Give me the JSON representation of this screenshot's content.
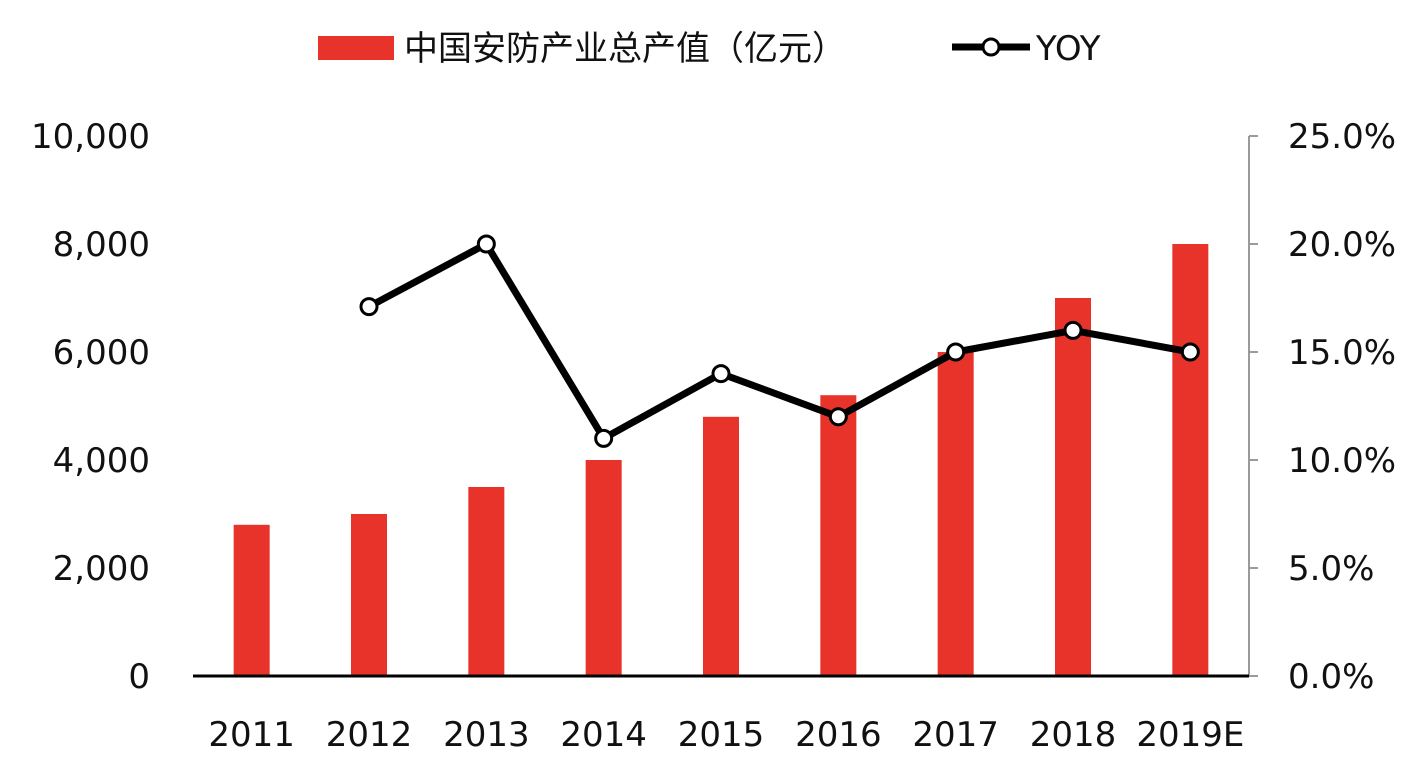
{
  "chart_data": {
    "type": "bar",
    "categories": [
      "2011",
      "2012",
      "2013",
      "2014",
      "2015",
      "2016",
      "2017",
      "2018",
      "2019E"
    ],
    "series": [
      {
        "name": "中国安防产业总产值（亿元）",
        "type": "bar",
        "axis": "left",
        "color": "#e8332a",
        "values": [
          2800,
          3000,
          3500,
          4000,
          4800,
          5200,
          6000,
          7000,
          8000
        ]
      },
      {
        "name": "YOY",
        "type": "line",
        "axis": "right",
        "color": "#000000",
        "marker": "hollow-circle",
        "values": [
          null,
          17.1,
          20.0,
          11.0,
          14.0,
          12.0,
          15.0,
          16.0,
          15.0
        ]
      }
    ],
    "left_axis": {
      "ylim": [
        0,
        10000
      ],
      "ticks": [
        0,
        2000,
        4000,
        6000,
        8000,
        10000
      ],
      "tick_labels": [
        "0",
        "2,000",
        "4,000",
        "6,000",
        "8,000",
        "10,000"
      ]
    },
    "right_axis": {
      "ylim": [
        0,
        25
      ],
      "ticks": [
        0,
        5,
        10,
        15,
        20,
        25
      ],
      "tick_labels": [
        "0.0%",
        "5.0%",
        "10.0%",
        "15.0%",
        "20.0%",
        "25.0%"
      ]
    },
    "legend": {
      "position": "top-center",
      "entries": [
        "中国安防产业总产值（亿元）",
        "YOY"
      ]
    },
    "grid": false
  }
}
